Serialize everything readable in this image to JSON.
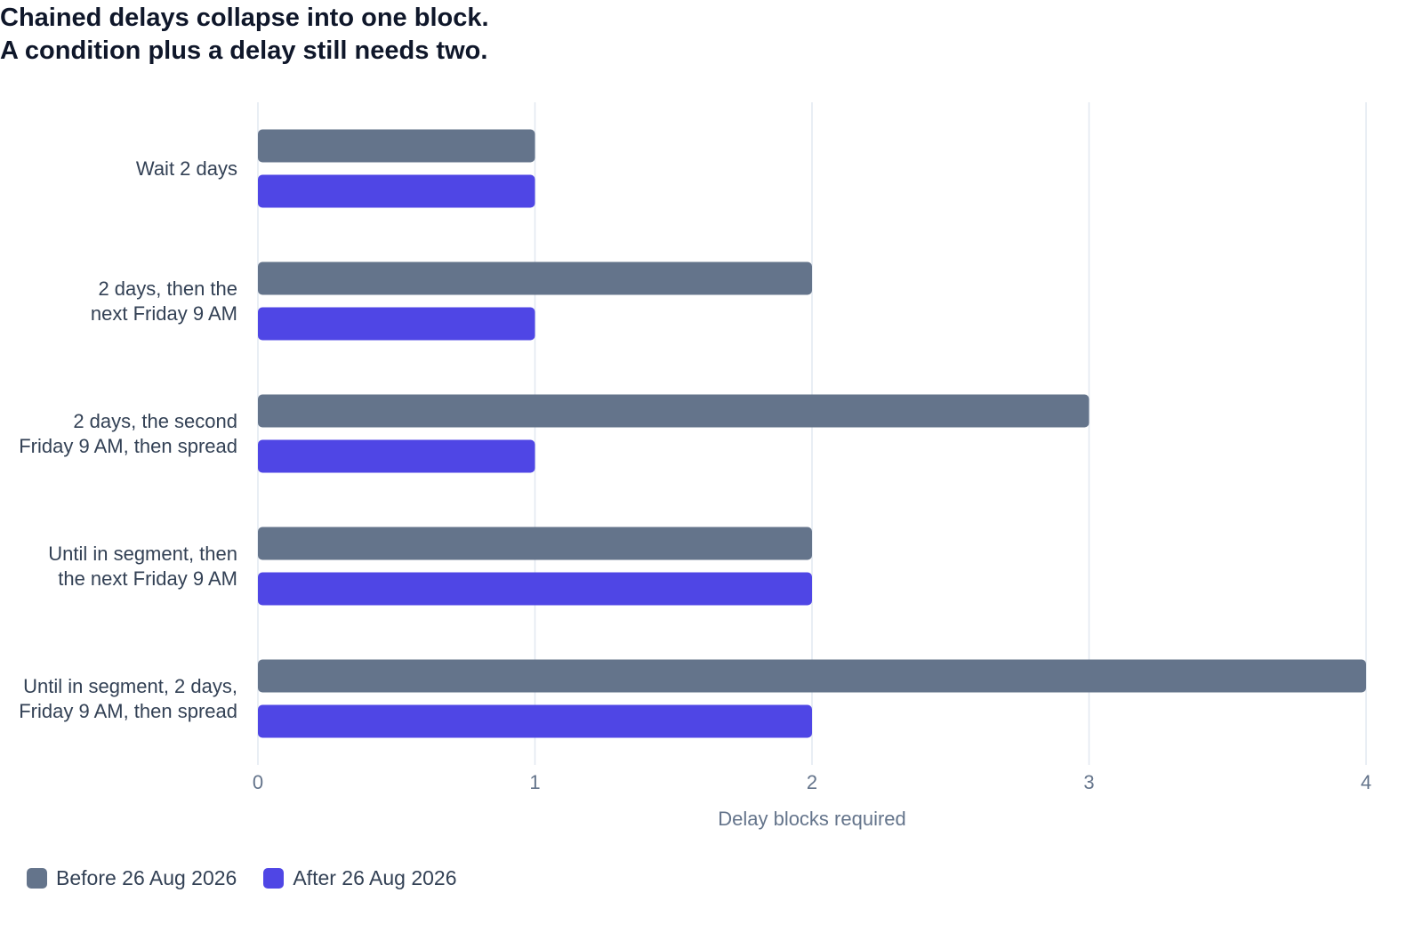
{
  "chart_data": {
    "type": "bar",
    "orientation": "horizontal",
    "title": "Chained delays collapse into one block.\nA condition plus a delay still needs two.",
    "x_label": "Delay blocks required",
    "categories": [
      "Wait 2 days",
      "2 days, then the\nnext Friday 9 AM",
      "2 days, the second\nFriday 9 AM, then spread",
      "Until in segment, then\nthe next Friday 9 AM",
      "Until in segment, 2 days,\nFriday 9 AM, then spread"
    ],
    "series": [
      {
        "name": "Before 26 Aug 2026",
        "color": "#64748b",
        "values": [
          1,
          2,
          3,
          2,
          4
        ]
      },
      {
        "name": "After 26 Aug 2026",
        "color": "#4f46e5",
        "values": [
          1,
          1,
          1,
          2,
          2
        ]
      }
    ],
    "xlim": [
      0,
      4
    ],
    "xticks": [
      0,
      1,
      2,
      3,
      4
    ],
    "grid": true,
    "legend": "bottom-left"
  }
}
